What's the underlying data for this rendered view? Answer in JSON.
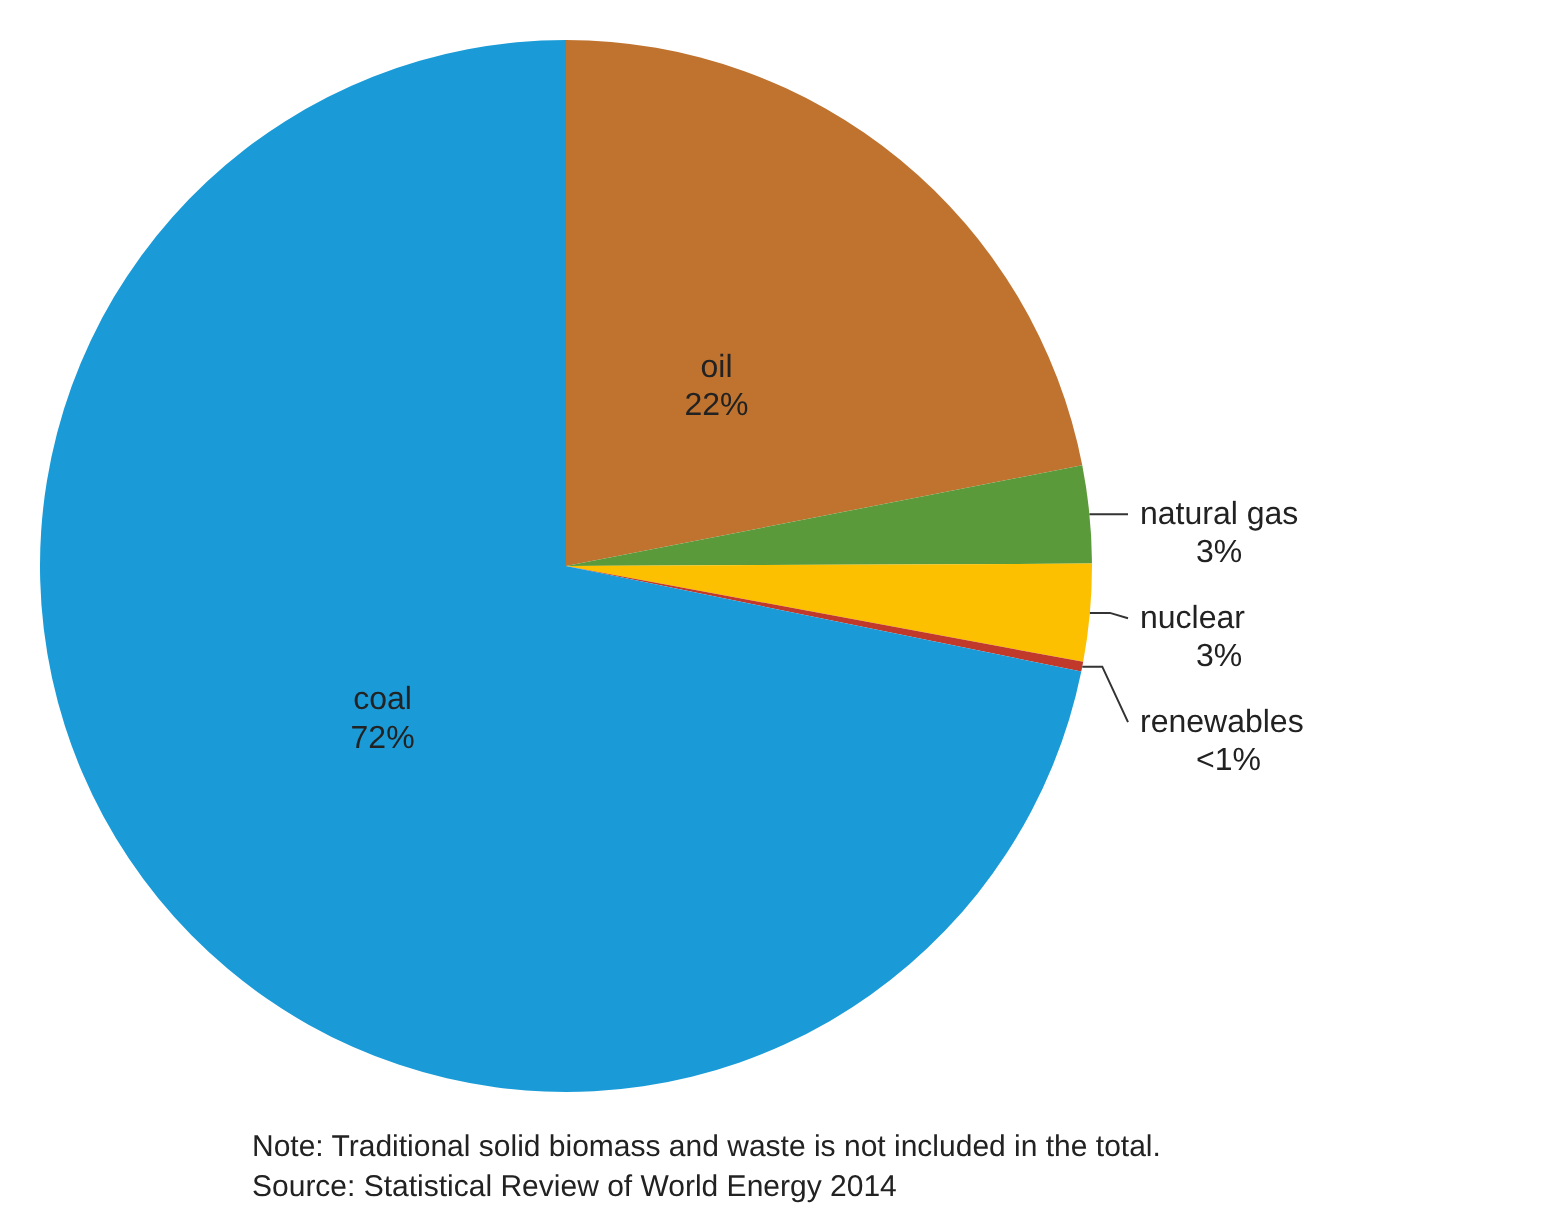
{
  "chart_data": {
    "type": "pie",
    "categories": [
      "oil",
      "natural gas",
      "nuclear",
      "renewables",
      "coal"
    ],
    "values": [
      22,
      3,
      3,
      0.3,
      72
    ],
    "value_labels": [
      "22%",
      "3%",
      "3%",
      "<1%",
      "72%"
    ],
    "colors": [
      "#bf732f",
      "#5b9a3a",
      "#fcc000",
      "#c0392b",
      "#1a9bd7"
    ],
    "annotations": [
      "Note: Traditional  solid biomass and waste is not included in the total.",
      "Source: Statistical Review of World Energy 2014"
    ]
  }
}
